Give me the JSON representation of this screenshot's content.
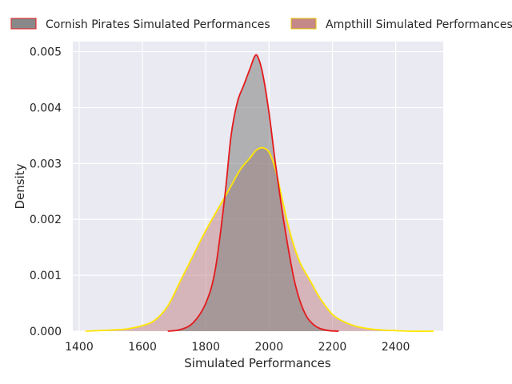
{
  "chart_data": {
    "type": "area",
    "title": "",
    "xlabel": "Simulated Performances",
    "ylabel": "Density",
    "xlim": [
      1380,
      2550
    ],
    "ylim": [
      0,
      0.00518
    ],
    "xticks": [
      1400,
      1600,
      1800,
      2000,
      2200,
      2400
    ],
    "xtick_labels": [
      "1400",
      "1600",
      "1800",
      "2000",
      "2200",
      "2400"
    ],
    "yticks": [
      0,
      0.001,
      0.002,
      0.003,
      0.004,
      0.005
    ],
    "ytick_labels": [
      "0.000",
      "0.001",
      "0.002",
      "0.003",
      "0.004",
      "0.005"
    ],
    "grid": true,
    "legend_position": "top, outside plot",
    "background": "#eaeaf2",
    "series": [
      {
        "name": "Cornish Pirates Simulated Performances",
        "fill_color": "#808080",
        "line_color": "#e41a1c",
        "fill_opacity": 0.55,
        "x": [
          1680,
          1720,
          1760,
          1800,
          1830,
          1860,
          1880,
          1900,
          1920,
          1940,
          1955,
          1965,
          1980,
          2000,
          2020,
          2040,
          2060,
          2080,
          2100,
          2120,
          2140,
          2160,
          2190,
          2220
        ],
        "y": [
          0,
          3e-05,
          0.00015,
          0.0005,
          0.0011,
          0.0024,
          0.0035,
          0.0041,
          0.0044,
          0.0047,
          0.00492,
          0.0049,
          0.0046,
          0.0039,
          0.003,
          0.0022,
          0.0015,
          0.0009,
          0.0005,
          0.00025,
          0.00012,
          5e-05,
          1e-05,
          0
        ]
      },
      {
        "name": "Ampthill Simulated Performances",
        "fill_color": "#c08080",
        "line_color": "#ffe600",
        "fill_opacity": 0.5,
        "x": [
          1420,
          1500,
          1550,
          1600,
          1640,
          1680,
          1720,
          1760,
          1800,
          1840,
          1880,
          1910,
          1940,
          1960,
          1980,
          2000,
          2020,
          2040,
          2060,
          2080,
          2100,
          2130,
          2160,
          2200,
          2240,
          2280,
          2320,
          2360,
          2400,
          2450,
          2520
        ],
        "y": [
          0,
          2e-05,
          4e-05,
          0.0001,
          0.0002,
          0.00045,
          0.0009,
          0.00135,
          0.0018,
          0.0022,
          0.0026,
          0.0029,
          0.0031,
          0.00324,
          0.00328,
          0.0032,
          0.0029,
          0.0024,
          0.0019,
          0.0015,
          0.0012,
          0.0009,
          0.0006,
          0.0003,
          0.00016,
          8e-05,
          4e-05,
          2e-05,
          1e-05,
          0,
          0
        ]
      }
    ]
  }
}
